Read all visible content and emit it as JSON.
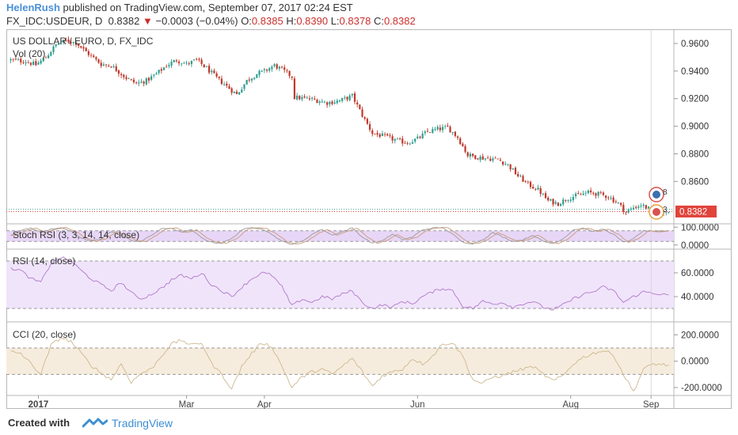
{
  "header": {
    "author": "HelenRush",
    "published": "published on TradingView.com, September 07, 2017 02:24 EST",
    "symbol": "FX_IDC:USDEUR, D",
    "last": "0.8382",
    "arrow": "▼",
    "change": "−0.0003 (−0.04%)",
    "o_label": "O:",
    "o": "0.8385",
    "h_label": "H:",
    "h": "0.8390",
    "l_label": "L:",
    "l": "0.8378",
    "c_label": "C:",
    "c": "0.8382"
  },
  "footer": {
    "created": "Created with",
    "brand": "TradingView",
    "logo_icon": "tradingview-logo-icon"
  },
  "colors": {
    "up": "#2f9e8f",
    "down": "#c0392b",
    "price_tag": "#e0433a",
    "stoch_fill": "#e8d6f7",
    "rsi_fill": "#f0e4fb",
    "cci_fill": "#f6ecdd",
    "osc_line": "#b079c8",
    "cci_line": "#cdb88f"
  },
  "chart_data": [
    {
      "type": "candlestick",
      "title": "US DOLLAR / EURO, D, FX_IDC",
      "indicator": "Vol (20)",
      "ylim": [
        0.831,
        0.968
      ],
      "yticks": [
        0.96,
        0.94,
        0.92,
        0.9,
        0.88,
        0.86
      ],
      "ytick_labels": [
        "0.9600",
        "0.9400",
        "0.9200",
        "0.9000",
        "0.8800",
        "0.8600"
      ],
      "last_price_label": "0.8382",
      "event_badges": [
        "8",
        "3"
      ],
      "x_labels": [
        "2017",
        "Mar",
        "Apr",
        "Jun",
        "Aug",
        "Sep"
      ],
      "x_label_days": [
        11,
        70,
        101,
        162,
        223,
        255
      ],
      "days": 263,
      "close_anchors": [
        [
          0,
          0.948
        ],
        [
          6,
          0.947
        ],
        [
          10,
          0.9445
        ],
        [
          14,
          0.95
        ],
        [
          18,
          0.959
        ],
        [
          22,
          0.962
        ],
        [
          26,
          0.9605
        ],
        [
          30,
          0.954
        ],
        [
          36,
          0.945
        ],
        [
          40,
          0.944
        ],
        [
          46,
          0.935
        ],
        [
          50,
          0.931
        ],
        [
          54,
          0.933
        ],
        [
          58,
          0.938
        ],
        [
          62,
          0.944
        ],
        [
          66,
          0.948
        ],
        [
          70,
          0.945
        ],
        [
          74,
          0.948
        ],
        [
          78,
          0.942
        ],
        [
          82,
          0.935
        ],
        [
          86,
          0.929
        ],
        [
          90,
          0.923
        ],
        [
          94,
          0.933
        ],
        [
          98,
          0.938
        ],
        [
          101,
          0.94
        ],
        [
          105,
          0.944
        ],
        [
          108,
          0.941
        ],
        [
          112,
          0.936
        ],
        [
          113,
          0.921
        ],
        [
          120,
          0.9195
        ],
        [
          126,
          0.917
        ],
        [
          131,
          0.9185
        ],
        [
          136,
          0.922
        ],
        [
          140,
          0.908
        ],
        [
          144,
          0.895
        ],
        [
          150,
          0.892
        ],
        [
          154,
          0.8895
        ],
        [
          158,
          0.888
        ],
        [
          162,
          0.891
        ],
        [
          166,
          0.896
        ],
        [
          170,
          0.898
        ],
        [
          174,
          0.899
        ],
        [
          178,
          0.892
        ],
        [
          182,
          0.879
        ],
        [
          188,
          0.877
        ],
        [
          194,
          0.876
        ],
        [
          198,
          0.872
        ],
        [
          202,
          0.864
        ],
        [
          206,
          0.858
        ],
        [
          210,
          0.854
        ],
        [
          214,
          0.846
        ],
        [
          218,
          0.844
        ],
        [
          222,
          0.848
        ],
        [
          226,
          0.85
        ],
        [
          230,
          0.852
        ],
        [
          234,
          0.851
        ],
        [
          238,
          0.849
        ],
        [
          242,
          0.844
        ],
        [
          245,
          0.8375
        ],
        [
          248,
          0.841
        ],
        [
          251,
          0.843
        ],
        [
          256,
          0.8385
        ],
        [
          262,
          0.8382
        ]
      ]
    },
    {
      "type": "line",
      "title": "Stoch RSI (3, 3, 14, 14, close)",
      "ylim": [
        -10,
        110
      ],
      "yticks": [
        100,
        0
      ],
      "ytick_labels": [
        "100.0000",
        "0.0000"
      ],
      "bands": [
        80,
        20
      ],
      "k_anchors": [
        [
          0,
          55
        ],
        [
          4,
          80
        ],
        [
          8,
          95
        ],
        [
          12,
          70
        ],
        [
          16,
          90
        ],
        [
          20,
          98
        ],
        [
          24,
          75
        ],
        [
          28,
          40
        ],
        [
          32,
          20
        ],
        [
          36,
          35
        ],
        [
          40,
          75
        ],
        [
          44,
          55
        ],
        [
          48,
          25
        ],
        [
          52,
          20
        ],
        [
          56,
          55
        ],
        [
          60,
          90
        ],
        [
          64,
          95
        ],
        [
          68,
          70
        ],
        [
          72,
          85
        ],
        [
          76,
          40
        ],
        [
          80,
          15
        ],
        [
          84,
          10
        ],
        [
          88,
          35
        ],
        [
          92,
          85
        ],
        [
          96,
          98
        ],
        [
          100,
          92
        ],
        [
          104,
          60
        ],
        [
          108,
          20
        ],
        [
          112,
          5
        ],
        [
          116,
          20
        ],
        [
          120,
          60
        ],
        [
          124,
          88
        ],
        [
          128,
          55
        ],
        [
          132,
          75
        ],
        [
          136,
          95
        ],
        [
          140,
          45
        ],
        [
          144,
          10
        ],
        [
          148,
          25
        ],
        [
          152,
          60
        ],
        [
          156,
          30
        ],
        [
          160,
          45
        ],
        [
          164,
          85
        ],
        [
          168,
          95
        ],
        [
          172,
          98
        ],
        [
          176,
          60
        ],
        [
          180,
          15
        ],
        [
          184,
          8
        ],
        [
          188,
          30
        ],
        [
          192,
          70
        ],
        [
          196,
          45
        ],
        [
          200,
          20
        ],
        [
          204,
          30
        ],
        [
          208,
          55
        ],
        [
          212,
          20
        ],
        [
          216,
          8
        ],
        [
          220,
          35
        ],
        [
          224,
          85
        ],
        [
          228,
          95
        ],
        [
          232,
          75
        ],
        [
          236,
          90
        ],
        [
          240,
          60
        ],
        [
          244,
          15
        ],
        [
          248,
          35
        ],
        [
          252,
          80
        ],
        [
          256,
          75
        ],
        [
          262,
          80
        ]
      ],
      "d_lag": 2
    },
    {
      "type": "line",
      "title": "RSI (14, close)",
      "ylim": [
        20,
        78
      ],
      "yticks": [
        60,
        40
      ],
      "ytick_labels": [
        "60.0000",
        "40.0000"
      ],
      "bands": [
        70,
        30
      ],
      "anchors": [
        [
          0,
          64
        ],
        [
          4,
          62
        ],
        [
          8,
          55
        ],
        [
          12,
          52
        ],
        [
          16,
          68
        ],
        [
          20,
          73
        ],
        [
          24,
          70
        ],
        [
          28,
          62
        ],
        [
          32,
          55
        ],
        [
          36,
          50
        ],
        [
          40,
          45
        ],
        [
          44,
          52
        ],
        [
          48,
          43
        ],
        [
          52,
          38
        ],
        [
          56,
          42
        ],
        [
          60,
          47
        ],
        [
          64,
          54
        ],
        [
          68,
          58
        ],
        [
          72,
          55
        ],
        [
          76,
          60
        ],
        [
          80,
          50
        ],
        [
          84,
          45
        ],
        [
          88,
          40
        ],
        [
          92,
          48
        ],
        [
          96,
          55
        ],
        [
          100,
          60
        ],
        [
          104,
          58
        ],
        [
          108,
          48
        ],
        [
          112,
          32
        ],
        [
          116,
          38
        ],
        [
          120,
          35
        ],
        [
          124,
          40
        ],
        [
          128,
          38
        ],
        [
          132,
          42
        ],
        [
          136,
          45
        ],
        [
          140,
          35
        ],
        [
          144,
          30
        ],
        [
          148,
          33
        ],
        [
          152,
          31
        ],
        [
          156,
          36
        ],
        [
          160,
          34
        ],
        [
          164,
          40
        ],
        [
          168,
          44
        ],
        [
          172,
          47
        ],
        [
          176,
          45
        ],
        [
          180,
          32
        ],
        [
          184,
          30
        ],
        [
          188,
          36
        ],
        [
          192,
          34
        ],
        [
          196,
          35
        ],
        [
          200,
          31
        ],
        [
          204,
          34
        ],
        [
          208,
          36
        ],
        [
          212,
          31
        ],
        [
          216,
          29
        ],
        [
          220,
          33
        ],
        [
          224,
          38
        ],
        [
          228,
          42
        ],
        [
          232,
          44
        ],
        [
          236,
          48
        ],
        [
          240,
          45
        ],
        [
          244,
          35
        ],
        [
          248,
          40
        ],
        [
          252,
          44
        ],
        [
          256,
          43
        ],
        [
          262,
          41
        ]
      ]
    },
    {
      "type": "line",
      "title": "CCI (20, close)",
      "ylim": [
        -260,
        280
      ],
      "yticks": [
        200,
        0,
        -200
      ],
      "ytick_labels": [
        "200.0000",
        "0.0000",
        "-200.0000"
      ],
      "bands": [
        100,
        -100
      ],
      "anchors": [
        [
          0,
          70
        ],
        [
          4,
          60
        ],
        [
          8,
          -20
        ],
        [
          12,
          -100
        ],
        [
          16,
          120
        ],
        [
          20,
          180
        ],
        [
          24,
          150
        ],
        [
          28,
          60
        ],
        [
          32,
          -30
        ],
        [
          36,
          -90
        ],
        [
          40,
          -140
        ],
        [
          44,
          -20
        ],
        [
          48,
          -160
        ],
        [
          52,
          -90
        ],
        [
          56,
          -60
        ],
        [
          60,
          40
        ],
        [
          64,
          130
        ],
        [
          68,
          160
        ],
        [
          72,
          120
        ],
        [
          76,
          140
        ],
        [
          80,
          -20
        ],
        [
          84,
          -100
        ],
        [
          88,
          -210
        ],
        [
          92,
          -40
        ],
        [
          96,
          60
        ],
        [
          100,
          140
        ],
        [
          104,
          110
        ],
        [
          108,
          -40
        ],
        [
          112,
          -200
        ],
        [
          116,
          -120
        ],
        [
          120,
          -80
        ],
        [
          124,
          -60
        ],
        [
          128,
          -100
        ],
        [
          132,
          -40
        ],
        [
          136,
          20
        ],
        [
          140,
          -80
        ],
        [
          144,
          -190
        ],
        [
          148,
          -110
        ],
        [
          152,
          -80
        ],
        [
          156,
          -60
        ],
        [
          160,
          20
        ],
        [
          164,
          -20
        ],
        [
          168,
          40
        ],
        [
          172,
          130
        ],
        [
          176,
          140
        ],
        [
          180,
          40
        ],
        [
          184,
          -140
        ],
        [
          188,
          -170
        ],
        [
          192,
          -120
        ],
        [
          196,
          -110
        ],
        [
          200,
          -80
        ],
        [
          204,
          -60
        ],
        [
          208,
          -40
        ],
        [
          212,
          -100
        ],
        [
          216,
          -150
        ],
        [
          220,
          -110
        ],
        [
          224,
          -20
        ],
        [
          228,
          30
        ],
        [
          232,
          60
        ],
        [
          236,
          80
        ],
        [
          240,
          50
        ],
        [
          244,
          -100
        ],
        [
          248,
          -230
        ],
        [
          252,
          -60
        ],
        [
          256,
          -20
        ],
        [
          262,
          -30
        ]
      ]
    }
  ]
}
